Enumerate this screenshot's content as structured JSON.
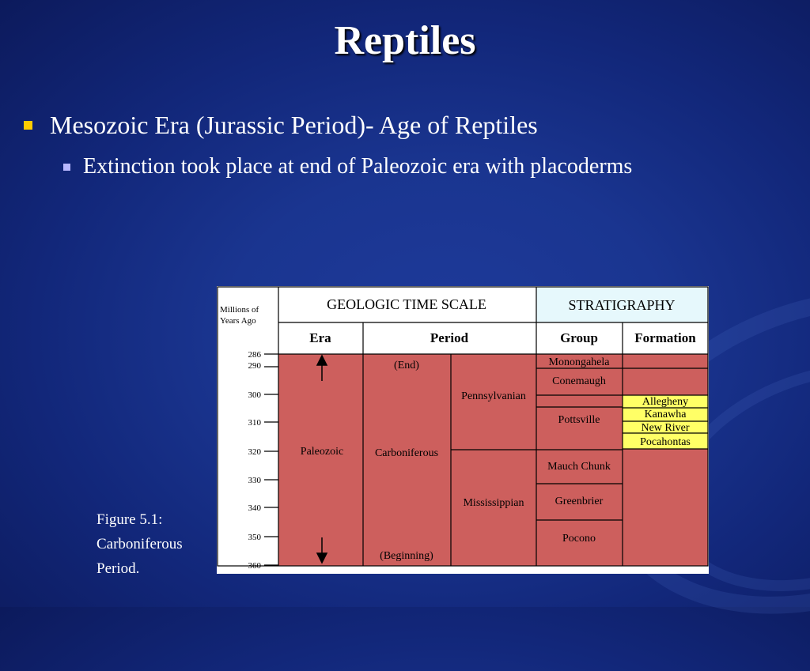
{
  "slide": {
    "title": "Reptiles",
    "bullet1": "Mesozoic Era (Jurassic Period)- Age of Reptiles",
    "bullet2": "Extinction took place at end of Paleozoic era with placoderms",
    "caption": [
      "Figure 5.1:",
      "Carboniferous",
      "Period."
    ]
  },
  "figure": {
    "axis_label": [
      "Millions of",
      "Years Ago"
    ],
    "header_left": "GEOLOGIC TIME SCALE",
    "header_right": "STRATIGRAPHY",
    "col_era": "Era",
    "col_period": "Period",
    "col_group": "Group",
    "col_formation": "Formation",
    "ticks": [
      "286",
      "290",
      "300",
      "310",
      "320",
      "330",
      "340",
      "350",
      "360"
    ],
    "era": "Paleozoic",
    "period": "Carboniferous",
    "period_end": "(End)",
    "period_beginning": "(Beginning)",
    "subperiods": [
      "Pennsylvanian",
      "Mississippian"
    ],
    "groups": [
      "Monongahela",
      "Conemaugh",
      "Pottsville",
      "Mauch Chunk",
      "Greenbrier",
      "Pocono"
    ],
    "formations": [
      "Allegheny",
      "Kanawha",
      "New River",
      "Pocahontas"
    ],
    "colors": {
      "red": "#cd5f5d",
      "yellow": "#ffff66",
      "header_blue": "#e6f8fc"
    }
  }
}
